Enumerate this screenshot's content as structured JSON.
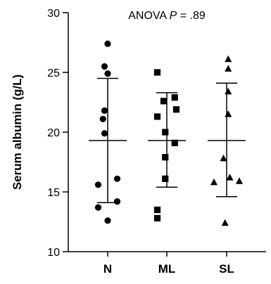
{
  "chart_data": {
    "type": "scatter",
    "ylabel": "Serum albumin  (g/L)",
    "xlabel": "",
    "ylim": [
      10,
      30
    ],
    "yticks": [
      10,
      15,
      20,
      25,
      30
    ],
    "categories": [
      "N",
      "ML",
      "SL"
    ],
    "annotation": {
      "prefix": "ANOVA ",
      "italic": "P",
      "suffix": " = .89"
    },
    "grid": false,
    "legend": "none",
    "series": [
      {
        "category": "N",
        "marker": "circle",
        "mean": 19.3,
        "sd_upper": 24.5,
        "sd_lower": 14.1,
        "points": [
          {
            "dx": 0,
            "y": 27.4
          },
          {
            "dx": -0.1,
            "y": 25.5
          },
          {
            "dx": 0,
            "y": 24.9
          },
          {
            "dx": -0.1,
            "y": 21.8
          },
          {
            "dx": -0.15,
            "y": 21.1
          },
          {
            "dx": -0.1,
            "y": 19.9
          },
          {
            "dx": 0.3,
            "y": 16.1
          },
          {
            "dx": -0.3,
            "y": 15.6
          },
          {
            "dx": 0.3,
            "y": 14.2
          },
          {
            "dx": -0.3,
            "y": 13.7
          },
          {
            "dx": 0,
            "y": 12.6
          }
        ]
      },
      {
        "category": "ML",
        "marker": "square",
        "mean": 19.3,
        "sd_upper": 23.3,
        "sd_lower": 15.4,
        "points": [
          {
            "dx": -0.3,
            "y": 25.0
          },
          {
            "dx": 0.25,
            "y": 22.9
          },
          {
            "dx": -0.1,
            "y": 22.6
          },
          {
            "dx": 0.3,
            "y": 21.9
          },
          {
            "dx": -0.3,
            "y": 21.3
          },
          {
            "dx": -0.05,
            "y": 20.0
          },
          {
            "dx": 0.25,
            "y": 19.1
          },
          {
            "dx": -0.05,
            "y": 17.9
          },
          {
            "dx": -0.05,
            "y": 16.1
          },
          {
            "dx": -0.3,
            "y": 13.5
          },
          {
            "dx": -0.3,
            "y": 12.8
          }
        ]
      },
      {
        "category": "SL",
        "marker": "triangle",
        "mean": 19.3,
        "sd_upper": 24.1,
        "sd_lower": 14.6,
        "points": [
          {
            "dx": 0.05,
            "y": 26.1
          },
          {
            "dx": 0.05,
            "y": 25.3
          },
          {
            "dx": 0.05,
            "y": 23.4
          },
          {
            "dx": 0.05,
            "y": 21.5
          },
          {
            "dx": -0.1,
            "y": 17.8
          },
          {
            "dx": 0.1,
            "y": 16.2
          },
          {
            "dx": -0.4,
            "y": 15.8
          },
          {
            "dx": 0.4,
            "y": 15.9
          },
          {
            "dx": -0.05,
            "y": 12.4
          }
        ]
      }
    ]
  }
}
